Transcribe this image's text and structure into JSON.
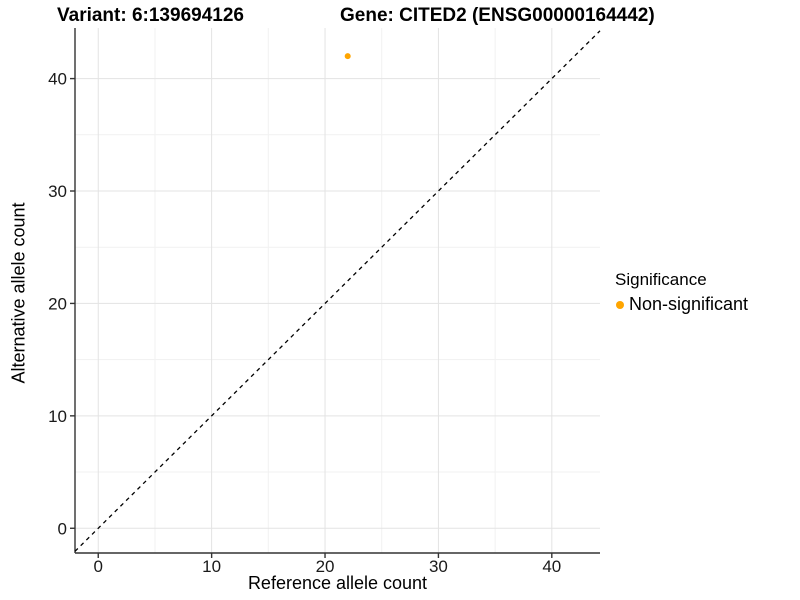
{
  "chart_data": {
    "type": "scatter",
    "title_left": "Variant: 6:139694126",
    "title_right": "Gene: CITED2 (ENSG00000164442)",
    "xlabel": "Reference allele count",
    "ylabel": "Alternative allele count",
    "x_ticks": [
      0,
      10,
      20,
      30,
      40
    ],
    "y_ticks": [
      0,
      10,
      20,
      30,
      40
    ],
    "x_minor_ticks": [
      5,
      15,
      25,
      35
    ],
    "y_minor_ticks": [
      5,
      15,
      25,
      35
    ],
    "xlim": [
      -2.05,
      44.25
    ],
    "ylim": [
      -2.2,
      44.5
    ],
    "grid": true,
    "legend_position": "right",
    "reference_line": {
      "type": "identity",
      "slope": 1,
      "intercept": 0,
      "style": "dashed",
      "color": "#000000"
    },
    "series": [
      {
        "name": "Non-significant",
        "color": "#FFA500",
        "points": [
          [
            22,
            42
          ]
        ]
      }
    ],
    "legend": {
      "title": "Significance",
      "entries": [
        {
          "label": "Non-significant",
          "color": "#FFA500"
        }
      ]
    }
  },
  "colors": {
    "background": "#FFFFFF",
    "grid_major": "#E3E3E3",
    "grid_minor": "#F1F1F1",
    "axis_line": "#333333",
    "tick_text": "#1A1A1A"
  }
}
